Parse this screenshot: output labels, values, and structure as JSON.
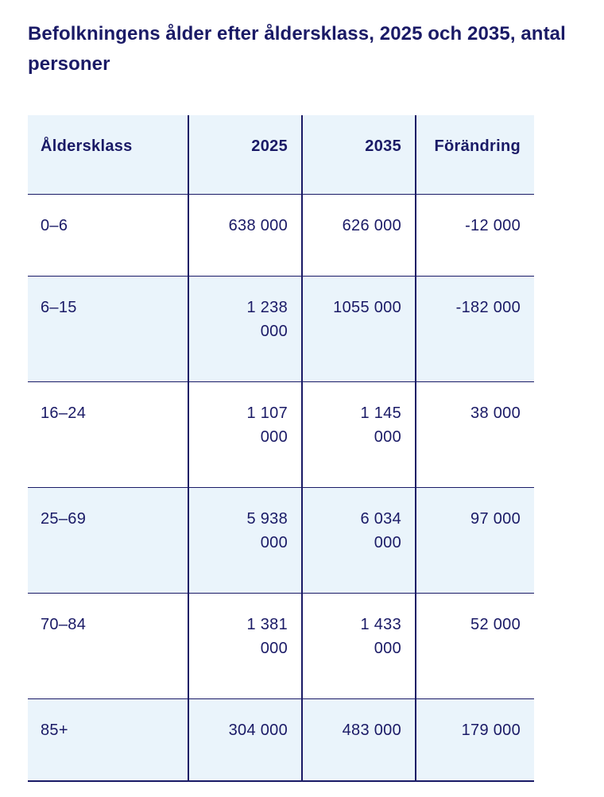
{
  "page_title": "Befolkningens ålder efter åldersklass, 2025 och 2035, antal\npersoner",
  "table": {
    "columns": [
      "Åldersklass",
      "2025",
      "2035",
      "Förändring"
    ],
    "rows": [
      {
        "age_class": "0–6",
        "v2025": "638 000",
        "v2035": "626 000",
        "change": "-12 000"
      },
      {
        "age_class": "6–15",
        "v2025": "1 238\n000",
        "v2035": "1055 000",
        "change": "-182 000"
      },
      {
        "age_class": "16–24",
        "v2025": "1 107\n000",
        "v2035": "1 145\n000",
        "change": "38 000"
      },
      {
        "age_class": "25–69",
        "v2025": "5 938\n000",
        "v2035": "6 034\n000",
        "change": "97 000"
      },
      {
        "age_class": "70–84",
        "v2025": "1 381\n000",
        "v2035": "1 433\n000",
        "change": "52 000"
      },
      {
        "age_class": "85+",
        "v2025": "304 000",
        "v2035": "483 000",
        "change": "179 000"
      }
    ]
  },
  "colors": {
    "navy": "#1a1a66",
    "row_light_blue": "#eaf4fb",
    "background": "#ffffff"
  },
  "chart_data": {
    "type": "table",
    "title": "Befolkningens ålder efter åldersklass, 2025 och 2035, antal personer",
    "categories": [
      "0–6",
      "6–15",
      "16–24",
      "25–69",
      "70–84",
      "85+"
    ],
    "series": [
      {
        "name": "2025",
        "values": [
          638000,
          1238000,
          1107000,
          5938000,
          1381000,
          304000
        ]
      },
      {
        "name": "2035",
        "values": [
          626000,
          1055000,
          1145000,
          6034000,
          1433000,
          483000
        ]
      },
      {
        "name": "Förändring",
        "values": [
          -12000,
          -182000,
          38000,
          97000,
          52000,
          179000
        ]
      }
    ],
    "layout_hints": {
      "zebra_striping": true,
      "header_background": "light-blue",
      "numeric_columns_align": "right"
    }
  }
}
